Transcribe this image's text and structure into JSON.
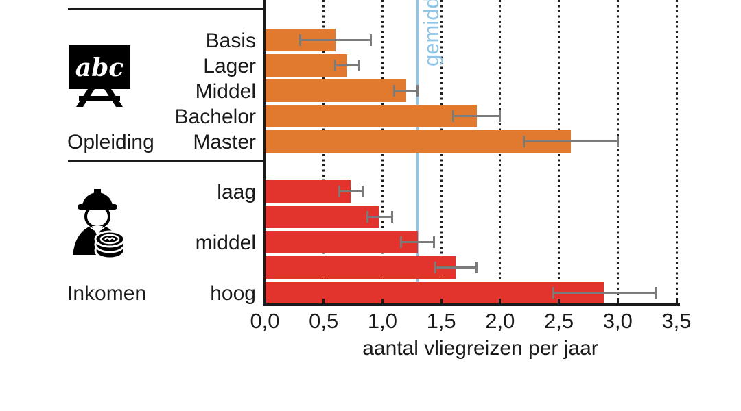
{
  "page": {
    "background": "#ffffff"
  },
  "colors": {
    "education_bar": "#E17A2F",
    "income_bar": "#E2342C",
    "error_bar": "#7B7B7B",
    "reference_line": "#8FC6E8",
    "axis": "#1A1A1A",
    "text": "#1A1A1A"
  },
  "chart_data": {
    "type": "bar",
    "orientation": "horizontal",
    "title": "",
    "xlabel": "aantal vliegreizen per jaar",
    "ylabel": "",
    "xlim": [
      0,
      3.5
    ],
    "x_ticks": [
      "0,0",
      "0,5",
      "1,0",
      "1,5",
      "2,0",
      "2,5",
      "3,0",
      "3,5"
    ],
    "x_tick_values": [
      0,
      0.5,
      1.0,
      1.5,
      2.0,
      2.5,
      3.0,
      3.5
    ],
    "grid": "vertical-dotted",
    "reference_line": {
      "value": 1.3,
      "label": "gemiddeld",
      "color": "#8FC6E8"
    },
    "groups": [
      {
        "name": "Opleiding",
        "icon": "chalkboard-abc-icon",
        "color": "#E17A2F",
        "bars": [
          {
            "label": "Basis",
            "value": 0.6,
            "err_low": 0.3,
            "err_high": 0.9
          },
          {
            "label": "Lager",
            "value": 0.7,
            "err_low": 0.6,
            "err_high": 0.8
          },
          {
            "label": "Middel",
            "value": 1.2,
            "err_low": 1.1,
            "err_high": 1.3
          },
          {
            "label": "Bachelor",
            "value": 1.8,
            "err_low": 1.6,
            "err_high": 2.0
          },
          {
            "label": "Master",
            "value": 2.6,
            "err_low": 2.2,
            "err_high": 3.0
          }
        ]
      },
      {
        "name": "Inkomen",
        "icon": "worker-coins-icon",
        "color": "#E2342C",
        "bars": [
          {
            "label": "laag",
            "value": 0.73,
            "err_low": 0.63,
            "err_high": 0.83
          },
          {
            "label": "",
            "value": 0.97,
            "err_low": 0.87,
            "err_high": 1.08
          },
          {
            "label": "middel",
            "value": 1.3,
            "err_low": 1.16,
            "err_high": 1.44
          },
          {
            "label": "",
            "value": 1.62,
            "err_low": 1.45,
            "err_high": 1.8
          },
          {
            "label": "hoog",
            "value": 2.88,
            "err_low": 2.45,
            "err_high": 3.32
          }
        ]
      }
    ]
  }
}
